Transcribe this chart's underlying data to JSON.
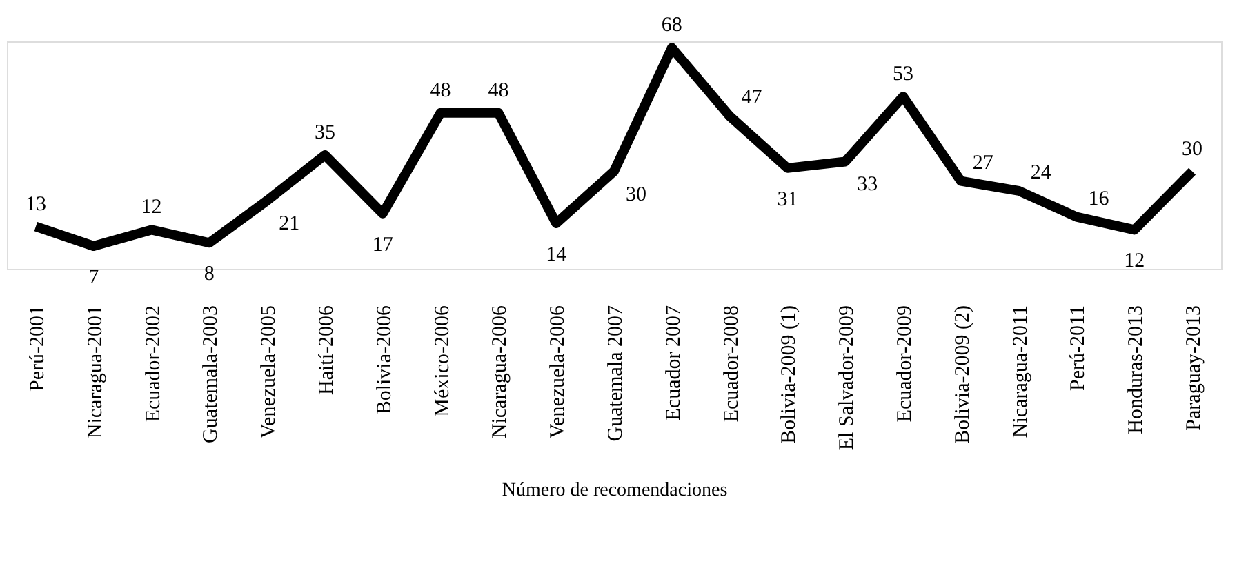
{
  "chart_data": {
    "type": "line",
    "xlabel": "Número de recomendaciones",
    "categories": [
      "Perú-2001",
      "Nicaragua-2001",
      "Ecuador-2002",
      "Guatemala-2003",
      "Venezuela-2005",
      "Haití-2006",
      "Bolivia-2006",
      "México-2006",
      "Nicaragua-2006",
      "Venezuela-2006",
      "Guatemala 2007",
      "Ecuador 2007",
      "Ecuador-2008",
      "Bolivia-2009 (1)",
      "El Salvador-2009",
      "Ecuador-2009",
      "Bolivia-2009 (2)",
      "Nicaragua-2011",
      "Perú-2011",
      "Honduras-2013",
      "Paraguay-2013"
    ],
    "series": [
      {
        "color": "#000000",
        "values": [
          13,
          7,
          12,
          8,
          21,
          35,
          17,
          48,
          48,
          14,
          30,
          68,
          47,
          31,
          33,
          53,
          27,
          24,
          16,
          12,
          30
        ]
      }
    ],
    "data_labels": true,
    "tick_labels": "x",
    "grid": false,
    "legend": false,
    "marker": "none",
    "line_style": "solid"
  }
}
